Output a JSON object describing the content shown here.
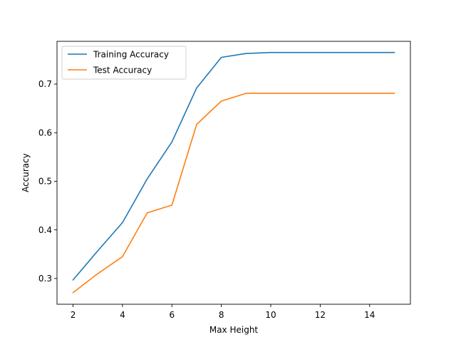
{
  "chart_data": {
    "type": "line",
    "title": "",
    "xlabel": "Max Height",
    "ylabel": "Accuracy",
    "xlim": [
      1.35,
      15.65
    ],
    "ylim": [
      0.247,
      0.788
    ],
    "xticks": [
      2,
      4,
      6,
      8,
      10,
      12,
      14
    ],
    "yticks": [
      0.3,
      0.4,
      0.5,
      0.6,
      0.7
    ],
    "ytick_labels": [
      "0.3",
      "0.4",
      "0.5",
      "0.6",
      "0.7"
    ],
    "grid": false,
    "legend_position": "upper-left",
    "x": [
      2,
      3,
      4,
      5,
      6,
      7,
      8,
      9,
      10,
      11,
      12,
      13,
      14,
      15
    ],
    "series": [
      {
        "name": "Training Accuracy",
        "color": "#1f77b4",
        "values": [
          0.297,
          0.357,
          0.415,
          0.505,
          0.581,
          0.692,
          0.755,
          0.763,
          0.765,
          0.765,
          0.765,
          0.765,
          0.765,
          0.765
        ]
      },
      {
        "name": "Test Accuracy",
        "color": "#ff7f0e",
        "values": [
          0.271,
          0.31,
          0.345,
          0.435,
          0.451,
          0.617,
          0.665,
          0.681,
          0.681,
          0.681,
          0.681,
          0.681,
          0.681,
          0.681
        ]
      }
    ]
  }
}
